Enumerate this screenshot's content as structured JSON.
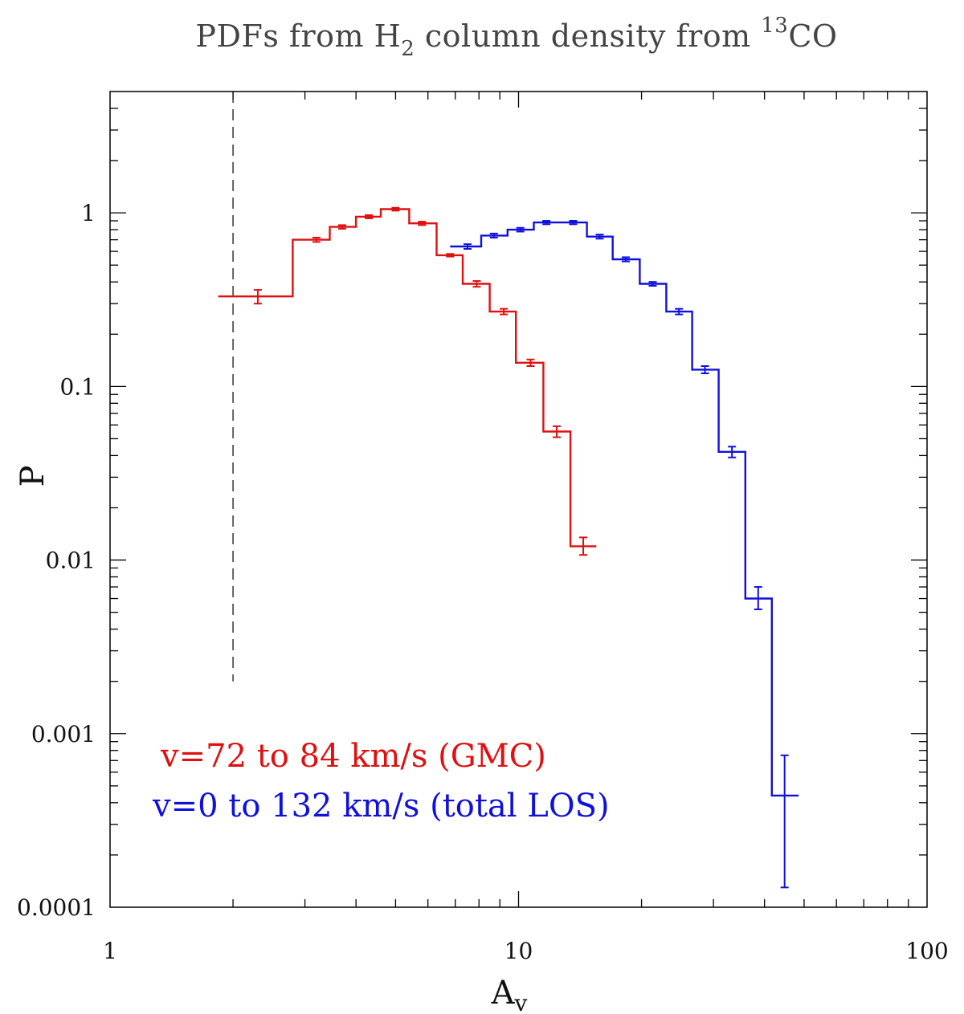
{
  "chart_data": {
    "type": "line",
    "drawstyle": "steps",
    "title": {
      "prefix": "PDFs from H",
      "sub": "2",
      "middle": " column density from ",
      "sup": "13",
      "suffix": "CO"
    },
    "xlabel": {
      "main": "A",
      "sub": "v"
    },
    "ylabel": "P",
    "xscale": "log",
    "yscale": "log",
    "xlim": [
      1,
      100
    ],
    "ylim": [
      0.0001,
      5
    ],
    "xticks": [
      {
        "value": 1,
        "label": "1"
      },
      {
        "value": 10,
        "label": "10"
      },
      {
        "value": 100,
        "label": "100"
      }
    ],
    "yticks": [
      {
        "value": 0.0001,
        "label": "0.0001"
      },
      {
        "value": 0.001,
        "label": "0.001"
      },
      {
        "value": 0.01,
        "label": "0.01"
      },
      {
        "value": 0.1,
        "label": "0.1"
      },
      {
        "value": 1,
        "label": "1"
      }
    ],
    "threshold_line": {
      "x": 2,
      "ymin": 0.002,
      "style": "dashed"
    },
    "legend_placement": "lower-left",
    "series": [
      {
        "name": "v=72 to 84 km/s (GMC)",
        "color": "#e01010",
        "bins": [
          {
            "x": 2.3,
            "lo": 1.84,
            "hi": 2.8,
            "y": 0.33,
            "err": [
              0.3,
              0.36
            ]
          },
          {
            "x": 3.2,
            "lo": 2.8,
            "hi": 3.45,
            "y": 0.7,
            "err": [
              0.68,
              0.72
            ]
          },
          {
            "x": 3.7,
            "lo": 3.45,
            "hi": 4.0,
            "y": 0.83,
            "err": [
              0.81,
              0.85
            ]
          },
          {
            "x": 4.3,
            "lo": 4.0,
            "hi": 4.6,
            "y": 0.95,
            "err": [
              0.93,
              0.97
            ]
          },
          {
            "x": 5.0,
            "lo": 4.6,
            "hi": 5.4,
            "y": 1.05,
            "err": [
              1.03,
              1.07
            ]
          },
          {
            "x": 5.8,
            "lo": 5.4,
            "hi": 6.3,
            "y": 0.87,
            "err": [
              0.85,
              0.89
            ]
          },
          {
            "x": 6.8,
            "lo": 6.3,
            "hi": 7.3,
            "y": 0.57,
            "err": [
              0.56,
              0.58
            ]
          },
          {
            "x": 7.9,
            "lo": 7.3,
            "hi": 8.5,
            "y": 0.39,
            "err": [
              0.375,
              0.405
            ]
          },
          {
            "x": 9.2,
            "lo": 8.5,
            "hi": 9.85,
            "y": 0.27,
            "err": [
              0.26,
              0.28
            ]
          },
          {
            "x": 10.7,
            "lo": 9.85,
            "hi": 11.5,
            "y": 0.137,
            "err": [
              0.131,
              0.143
            ]
          },
          {
            "x": 12.4,
            "lo": 11.5,
            "hi": 13.4,
            "y": 0.055,
            "err": [
              0.051,
              0.059
            ]
          },
          {
            "x": 14.4,
            "lo": 13.4,
            "hi": 15.5,
            "y": 0.012,
            "err": [
              0.0107,
              0.0135
            ]
          }
        ]
      },
      {
        "name": "v=0 to 132 km/s (total LOS)",
        "color": "#1010dd",
        "bins": [
          {
            "x": 7.5,
            "lo": 6.8,
            "hi": 8.1,
            "y": 0.64,
            "err": [
              0.62,
              0.66
            ]
          },
          {
            "x": 8.7,
            "lo": 8.1,
            "hi": 9.4,
            "y": 0.74,
            "err": [
              0.72,
              0.76
            ]
          },
          {
            "x": 10.1,
            "lo": 9.4,
            "hi": 10.9,
            "y": 0.8,
            "err": [
              0.78,
              0.82
            ]
          },
          {
            "x": 11.7,
            "lo": 10.9,
            "hi": 12.6,
            "y": 0.88,
            "err": [
              0.86,
              0.9
            ]
          },
          {
            "x": 13.6,
            "lo": 12.6,
            "hi": 14.7,
            "y": 0.88,
            "err": [
              0.86,
              0.9
            ]
          },
          {
            "x": 15.8,
            "lo": 14.7,
            "hi": 17.0,
            "y": 0.73,
            "err": [
              0.71,
              0.75
            ]
          },
          {
            "x": 18.3,
            "lo": 17.0,
            "hi": 19.8,
            "y": 0.54,
            "err": [
              0.525,
              0.555
            ]
          },
          {
            "x": 21.3,
            "lo": 19.8,
            "hi": 23.0,
            "y": 0.39,
            "err": [
              0.38,
              0.4
            ]
          },
          {
            "x": 24.7,
            "lo": 23.0,
            "hi": 26.6,
            "y": 0.27,
            "err": [
              0.26,
              0.28
            ]
          },
          {
            "x": 28.6,
            "lo": 26.6,
            "hi": 30.9,
            "y": 0.125,
            "err": [
              0.119,
              0.131
            ]
          },
          {
            "x": 33.3,
            "lo": 30.9,
            "hi": 35.9,
            "y": 0.042,
            "err": [
              0.039,
              0.045
            ]
          },
          {
            "x": 38.6,
            "lo": 35.9,
            "hi": 41.7,
            "y": 0.006,
            "err": [
              0.0052,
              0.007
            ]
          },
          {
            "x": 44.8,
            "lo": 41.7,
            "hi": 48.5,
            "y": 0.00044,
            "err": [
              0.00013,
              0.00075
            ]
          }
        ]
      }
    ]
  }
}
